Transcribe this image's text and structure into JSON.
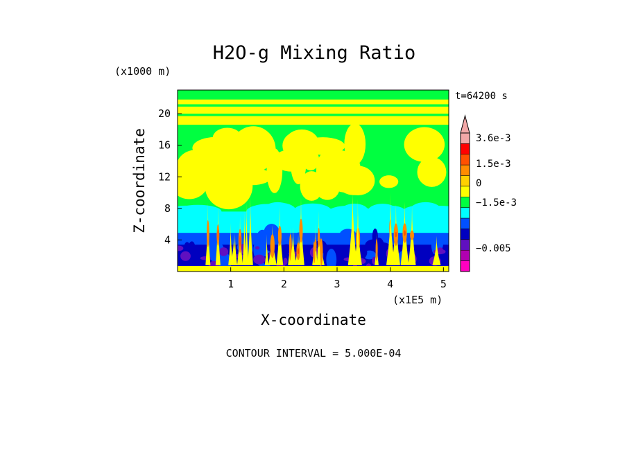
{
  "chart_data": {
    "type": "heatmap",
    "title": "H2O-g Mixing Ratio",
    "xlabel": "X-coordinate",
    "ylabel": "Z-coordinate",
    "x_unit": "(x1E5 m)",
    "y_unit": "(x1000 m)",
    "time_label": "t=64200 s",
    "footer": "CONTOUR INTERVAL = 5.000E-04",
    "x_ticks": [
      "1",
      "2",
      "3",
      "4",
      "5"
    ],
    "y_ticks": [
      "4",
      "8",
      "12",
      "16",
      "20"
    ],
    "xlim": [
      0,
      5.1
    ],
    "ylim": [
      0,
      23
    ],
    "colorbar": {
      "labels": [
        "3.6e-3",
        "1.5e-3",
        "0",
        "−1.5e-3",
        "−0.005"
      ],
      "colors": [
        "#f2a8a8",
        "#ff0000",
        "#ff5000",
        "#ff8c00",
        "#ffd000",
        "#ffff00",
        "#00ff40",
        "#00ffff",
        "#0050ff",
        "#0000c0",
        "#6010c0",
        "#b000b0",
        "#ff00c0"
      ]
    },
    "field_colors": {
      "upper": "#00ff40",
      "moist": "#ffff00",
      "mid": "#00ffff",
      "low_blue": "#0050ff",
      "low_navy": "#0000c0",
      "low_purple": "#6010c0",
      "plume_orange": "#ff8c00",
      "plume_red": "#ff5000"
    }
  }
}
